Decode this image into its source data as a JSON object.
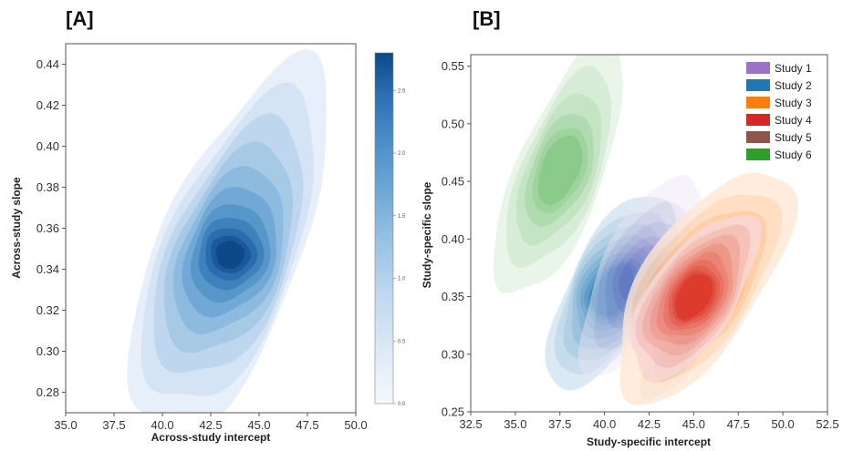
{
  "panel_a": {
    "label": "[A]",
    "chart_data": {
      "type": "heatmap",
      "xlabel": "Across-study intercept",
      "ylabel": "Across-study slope",
      "xlim": [
        35.0,
        50.0
      ],
      "ylim": [
        0.27,
        0.45
      ],
      "xticks": [
        "35.0",
        "37.5",
        "40.0",
        "42.5",
        "45.0",
        "47.5",
        "50.0"
      ],
      "yticks": [
        "0.28",
        "0.30",
        "0.32",
        "0.34",
        "0.36",
        "0.38",
        "0.40",
        "0.42",
        "0.44"
      ],
      "colorbar_ticks": [
        "0.0",
        "0.5",
        "1.0",
        "1.5",
        "2.0",
        "2.5"
      ],
      "colorbar_range": [
        0.0,
        2.8
      ],
      "density_peak": [
        43.5,
        0.347
      ],
      "levels": 11,
      "colors": [
        "#e7f0fa",
        "#d4e4f4",
        "#bfd7ee",
        "#a6c9e6",
        "#8dbadf",
        "#71a8d5",
        "#5796c9",
        "#3e81bc",
        "#2a6dad",
        "#1a5a9c",
        "#0e4888"
      ]
    }
  },
  "panel_b": {
    "label": "[B]",
    "chart_data": {
      "type": "heatmap",
      "xlabel": "Study-specific intercept",
      "ylabel": "Study-specific slope",
      "xlim": [
        32.5,
        52.5
      ],
      "ylim": [
        0.25,
        0.56
      ],
      "xticks": [
        "32.5",
        "35.0",
        "37.5",
        "40.0",
        "42.5",
        "45.0",
        "47.5",
        "50.0",
        "52.5"
      ],
      "yticks": [
        "0.25",
        "0.30",
        "0.35",
        "0.40",
        "0.45",
        "0.50",
        "0.55"
      ],
      "legend_position": "top-right",
      "series": [
        {
          "name": "Study 1",
          "color": "#9b72c9",
          "center": [
            42.0,
            0.37
          ]
        },
        {
          "name": "Study 2",
          "color": "#1f77b4",
          "center": [
            40.5,
            0.355
          ]
        },
        {
          "name": "Study 3",
          "color": "#ff7f0e",
          "center": [
            45.5,
            0.36
          ]
        },
        {
          "name": "Study 4",
          "color": "#d62728",
          "center": [
            45.0,
            0.35
          ]
        },
        {
          "name": "Study 5",
          "color": "#8c564b",
          "center": [
            44.0,
            0.3
          ]
        },
        {
          "name": "Study 6",
          "color": "#2ca02c",
          "center": [
            37.5,
            0.46
          ]
        }
      ]
    }
  }
}
